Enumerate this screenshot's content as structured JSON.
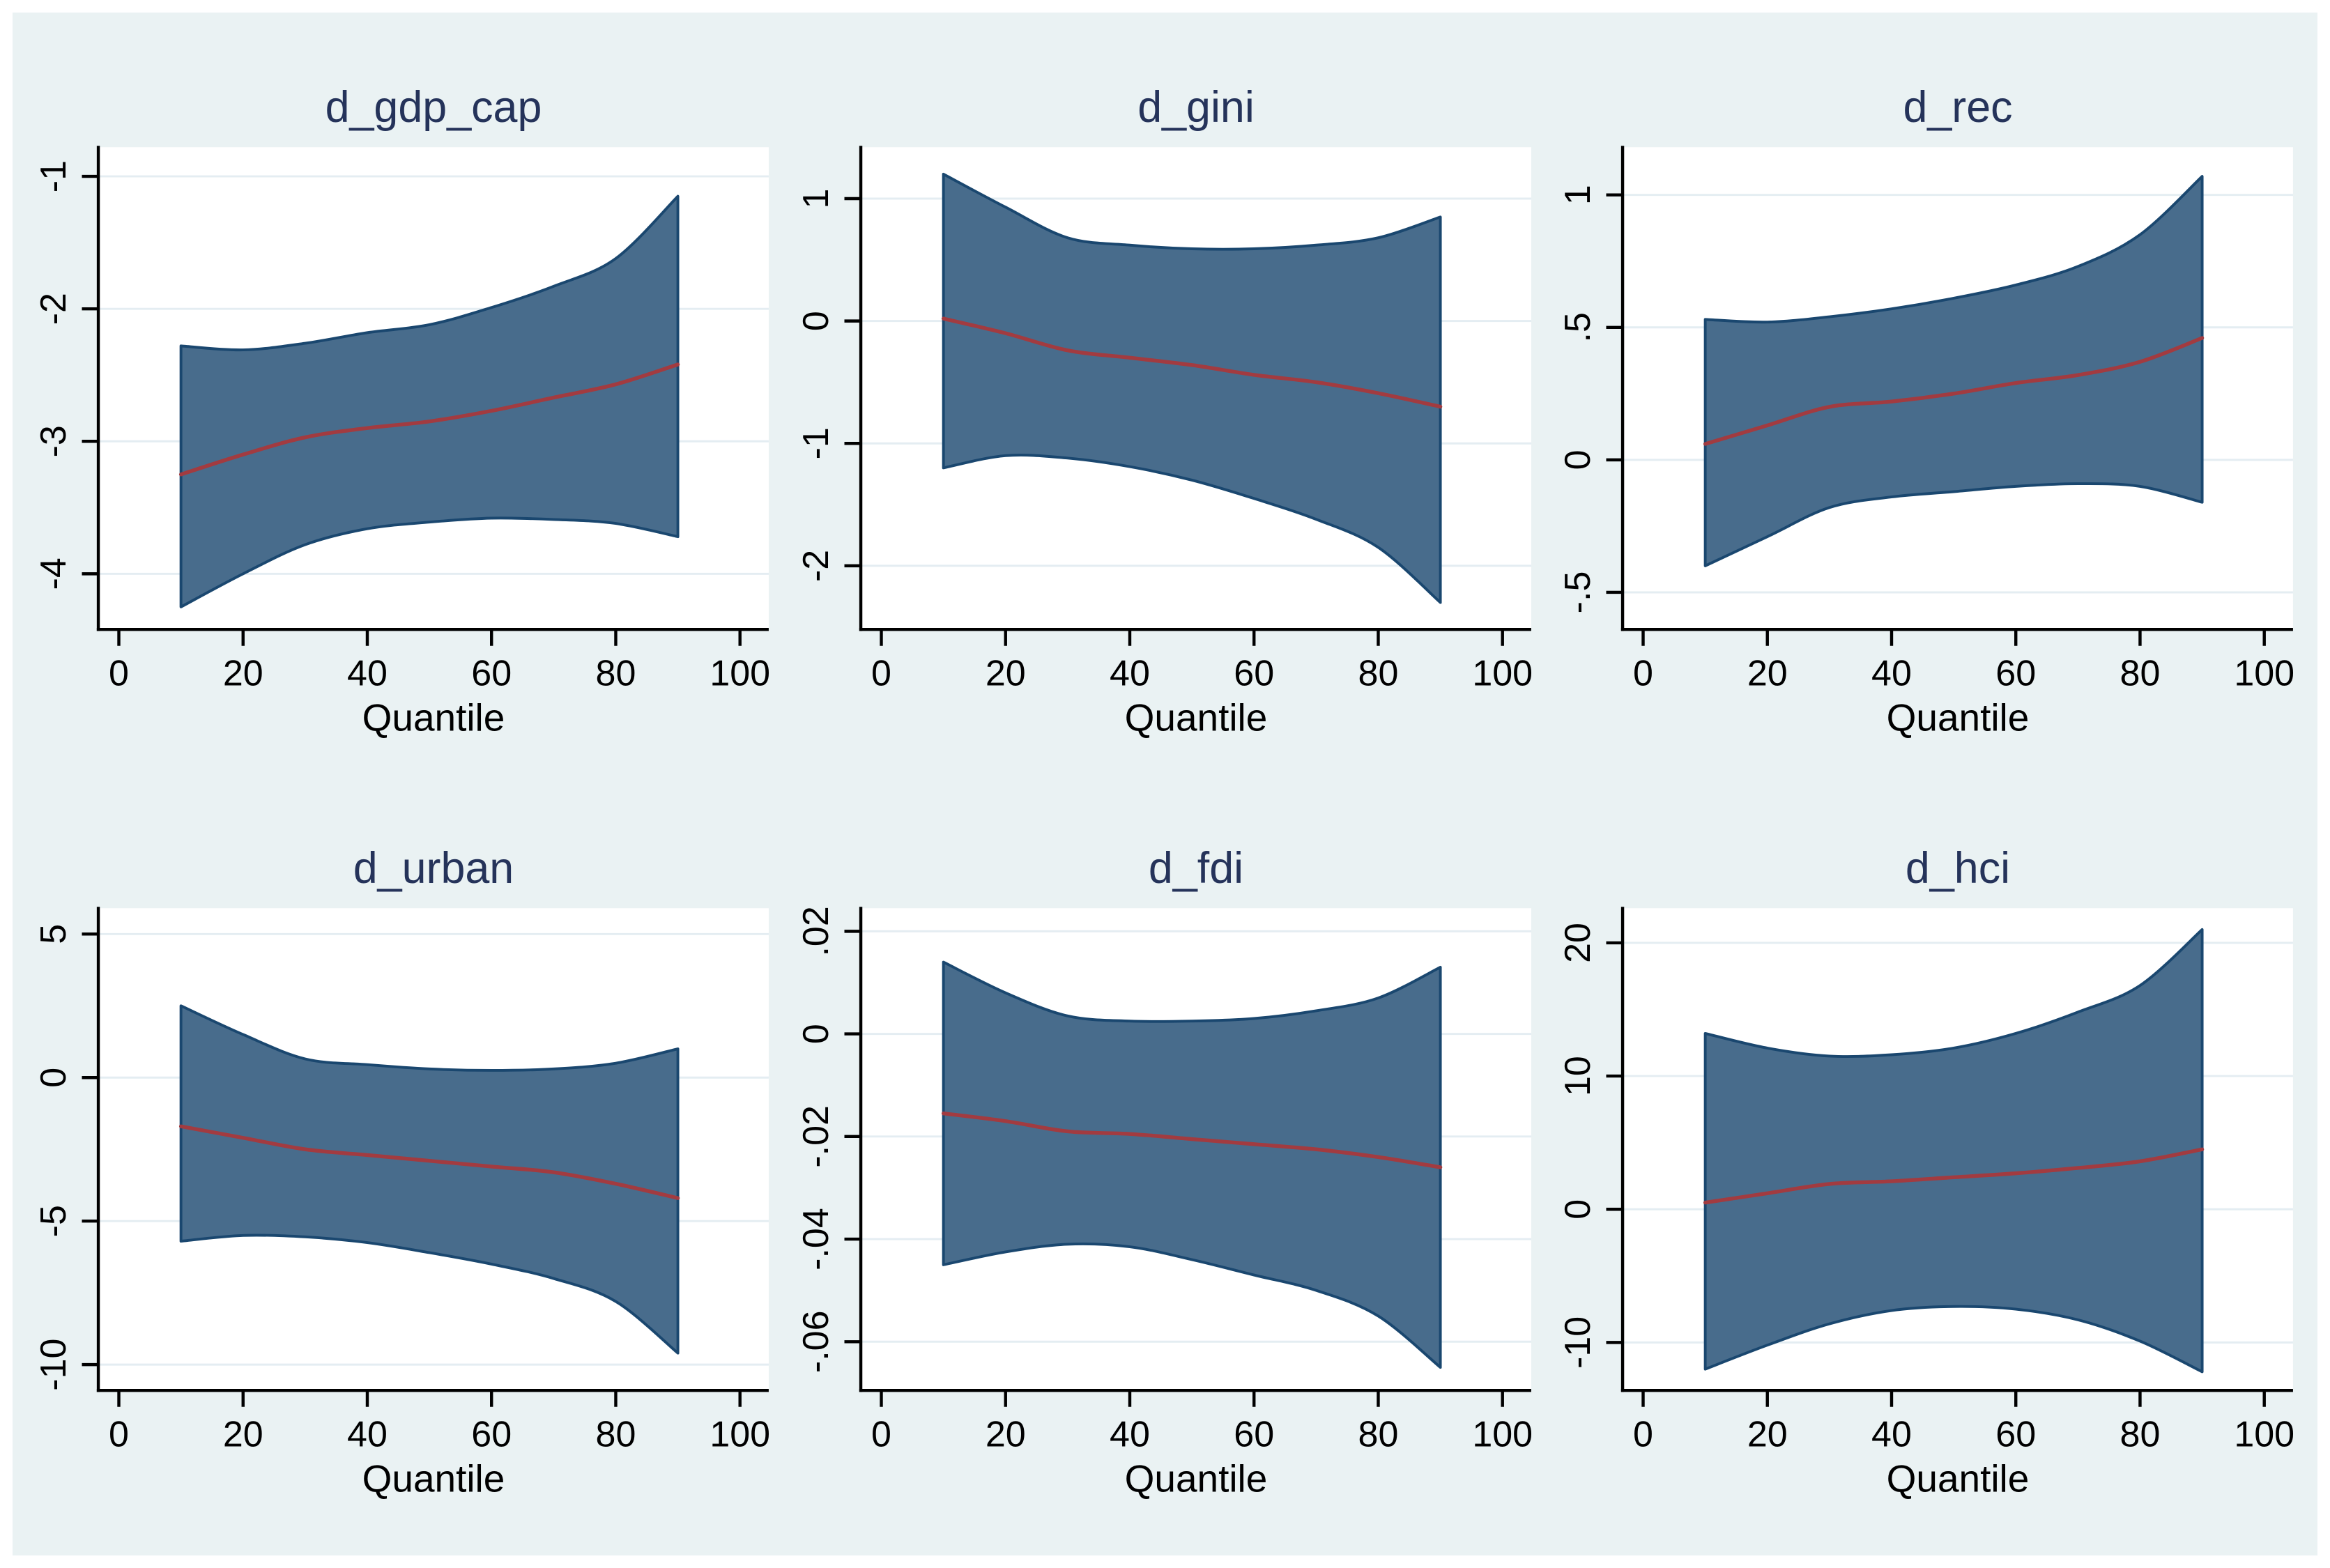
{
  "figure_title": "",
  "chart_data": {
    "type": "area",
    "layout": {
      "rows": 2,
      "cols": 3
    },
    "x_label": "Quantile",
    "x_ticks": [
      0,
      20,
      40,
      60,
      80,
      100
    ],
    "xlim": [
      0,
      100
    ],
    "x": [
      10,
      20,
      30,
      40,
      50,
      60,
      70,
      80,
      90
    ],
    "grid": "horizontal-only",
    "legend": "none",
    "panels": [
      {
        "title": "d_gdp_cap",
        "ylim": [
          -4.42,
          -0.78
        ],
        "y_tick_values": [
          -1,
          -2,
          -3,
          -4
        ],
        "y_tick_labels": [
          "-1",
          "-2",
          "-3",
          "-4"
        ],
        "series": {
          "upper": [
            -2.28,
            -2.31,
            -2.26,
            -2.18,
            -2.12,
            -1.99,
            -1.83,
            -1.62,
            -1.15
          ],
          "mid": [
            -3.25,
            -3.1,
            -2.97,
            -2.9,
            -2.85,
            -2.77,
            -2.67,
            -2.57,
            -2.42
          ],
          "lower": [
            -4.25,
            -4.0,
            -3.78,
            -3.66,
            -3.61,
            -3.58,
            -3.59,
            -3.62,
            -3.72
          ]
        }
      },
      {
        "title": "d_gini",
        "ylim": [
          -2.52,
          1.42
        ],
        "y_tick_values": [
          1,
          0,
          -1,
          -2
        ],
        "y_tick_labels": [
          "1",
          "0",
          "-1",
          "-2"
        ],
        "series": {
          "upper": [
            1.2,
            0.93,
            0.68,
            0.62,
            0.59,
            0.59,
            0.62,
            0.68,
            0.85
          ],
          "mid": [
            0.02,
            -0.1,
            -0.24,
            -0.3,
            -0.36,
            -0.44,
            -0.5,
            -0.59,
            -0.7
          ],
          "lower": [
            -1.2,
            -1.1,
            -1.12,
            -1.19,
            -1.3,
            -1.45,
            -1.62,
            -1.85,
            -2.3
          ]
        }
      },
      {
        "title": "d_rec",
        "ylim": [
          -0.64,
          1.18
        ],
        "y_tick_values": [
          1,
          0.5,
          0,
          -0.5
        ],
        "y_tick_labels": [
          "1",
          ".5",
          "0",
          "-.5"
        ],
        "series": {
          "upper": [
            0.53,
            0.52,
            0.54,
            0.57,
            0.61,
            0.66,
            0.73,
            0.85,
            1.07
          ],
          "mid": [
            0.06,
            0.13,
            0.2,
            0.22,
            0.25,
            0.29,
            0.32,
            0.37,
            0.46
          ],
          "lower": [
            -0.4,
            -0.29,
            -0.18,
            -0.14,
            -0.12,
            -0.1,
            -0.09,
            -0.1,
            -0.16
          ]
        }
      },
      {
        "title": "d_urban",
        "ylim": [
          -10.9,
          5.9
        ],
        "y_tick_values": [
          5,
          0,
          -5,
          -10
        ],
        "y_tick_labels": [
          "5",
          "0",
          "-5",
          "-10"
        ],
        "series": {
          "upper": [
            2.5,
            1.5,
            0.65,
            0.45,
            0.3,
            0.25,
            0.3,
            0.5,
            1.0
          ],
          "mid": [
            -1.7,
            -2.1,
            -2.5,
            -2.7,
            -2.9,
            -3.1,
            -3.3,
            -3.7,
            -4.2
          ],
          "lower": [
            -5.7,
            -5.5,
            -5.55,
            -5.75,
            -6.1,
            -6.5,
            -7.0,
            -7.8,
            -9.6
          ]
        }
      },
      {
        "title": "d_fdi",
        "ylim": [
          -0.0695,
          0.0245
        ],
        "y_tick_values": [
          0.02,
          0,
          -0.02,
          -0.04,
          -0.06
        ],
        "y_tick_labels": [
          ".02",
          "0",
          "-.02",
          "-.04",
          "-.06"
        ],
        "series": {
          "upper": [
            0.014,
            0.008,
            0.0035,
            0.0025,
            0.0025,
            0.003,
            0.0045,
            0.007,
            0.013
          ],
          "mid": [
            -0.0155,
            -0.017,
            -0.019,
            -0.0195,
            -0.0205,
            -0.0215,
            -0.0225,
            -0.024,
            -0.026
          ],
          "lower": [
            -0.045,
            -0.0425,
            -0.041,
            -0.0415,
            -0.044,
            -0.047,
            -0.05,
            -0.055,
            -0.065
          ]
        }
      },
      {
        "title": "d_hci",
        "ylim": [
          -13.6,
          22.6
        ],
        "y_tick_values": [
          20,
          10,
          0,
          -10
        ],
        "y_tick_labels": [
          "20",
          "10",
          "0",
          "-10"
        ],
        "series": {
          "upper": [
            13.2,
            12.1,
            11.5,
            11.6,
            12.1,
            13.2,
            14.8,
            16.8,
            21.0
          ],
          "mid": [
            0.5,
            1.2,
            1.9,
            2.1,
            2.4,
            2.7,
            3.1,
            3.6,
            4.5
          ],
          "lower": [
            -12.0,
            -10.2,
            -8.6,
            -7.6,
            -7.3,
            -7.5,
            -8.3,
            -9.9,
            -12.2
          ]
        }
      }
    ],
    "style": {
      "page_bg": "#ffffff",
      "region_bg": "#eaf2f3",
      "plot_bg": "#ffffff",
      "grid_color": "#e4edf2",
      "axis_color": "#000000",
      "tick_label_color": "#000000",
      "title_color": "#25335a",
      "band_fill": "#486c8c",
      "band_stroke": "#1a476f",
      "mid_stroke": "#a23b40"
    }
  }
}
